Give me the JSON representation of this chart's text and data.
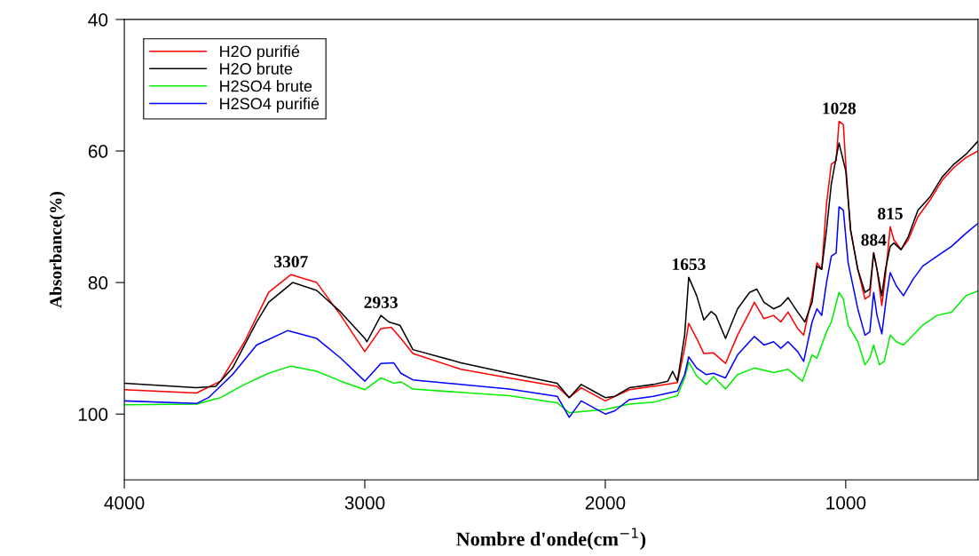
{
  "chart_data": {
    "type": "line",
    "xlabel": "Nombre d'onde(cm$^{−1}$)",
    "ylabel": "Absorbance(%)",
    "xlim": [
      4000,
      450
    ],
    "xticks": [
      4000,
      3000,
      2000,
      1000
    ],
    "ylim": [
      110,
      40
    ],
    "yticks": [
      40,
      60,
      80,
      100
    ],
    "grid": false,
    "legend": "top left",
    "marker": "none",
    "line_style": "solid",
    "series": [
      {
        "name": "H2O purifié",
        "color": "#ff0000",
        "x": [
          4000,
          3700,
          3600,
          3500,
          3400,
          3307,
          3200,
          3100,
          3000,
          2933,
          2890,
          2850,
          2800,
          2600,
          2400,
          2200,
          2150,
          2100,
          2000,
          1900,
          1800,
          1700,
          1670,
          1653,
          1620,
          1590,
          1550,
          1500,
          1450,
          1400,
          1380,
          1340,
          1300,
          1270,
          1240,
          1200,
          1175,
          1140,
          1120,
          1100,
          1080,
          1060,
          1040,
          1028,
          1010,
          1000,
          980,
          950,
          920,
          900,
          884,
          870,
          850,
          835,
          815,
          800,
          770,
          740,
          700,
          650,
          600,
          550,
          500,
          450
        ],
        "values": [
          96.3,
          96.8,
          95,
          89,
          81.5,
          78.8,
          80,
          85,
          90.5,
          87,
          86.8,
          88.5,
          90.8,
          93.2,
          94.5,
          95.8,
          97.5,
          96,
          98,
          96.3,
          95.8,
          95.2,
          90,
          86.2,
          88.5,
          90.8,
          90.7,
          92.3,
          88,
          84.5,
          83,
          85.5,
          85,
          86,
          84.5,
          87,
          88,
          82,
          77,
          78,
          68,
          62,
          61.5,
          55.5,
          56,
          62,
          72,
          78,
          82.5,
          82,
          75.5,
          78,
          83.5,
          79,
          71.5,
          73.5,
          75,
          73.5,
          70,
          67.5,
          64.5,
          62.5,
          61,
          60
        ]
      },
      {
        "name": "H2O brute",
        "color": "#000000",
        "x": [
          4000,
          3700,
          3620,
          3550,
          3450,
          3400,
          3300,
          3200,
          3100,
          3000,
          2991,
          2933,
          2900,
          2854,
          2800,
          2600,
          2400,
          2200,
          2150,
          2100,
          2050,
          2000,
          1960,
          1900,
          1800,
          1740,
          1720,
          1700,
          1670,
          1653,
          1620,
          1590,
          1560,
          1540,
          1500,
          1450,
          1400,
          1370,
          1340,
          1300,
          1270,
          1240,
          1200,
          1170,
          1140,
          1120,
          1100,
          1080,
          1060,
          1040,
          1028,
          1000,
          980,
          950,
          920,
          900,
          884,
          870,
          850,
          835,
          815,
          800,
          770,
          740,
          700,
          650,
          600,
          550,
          500,
          450
        ],
        "values": [
          95.3,
          96,
          95.8,
          93,
          86,
          83,
          80,
          81.2,
          84.5,
          88.5,
          89,
          85,
          86,
          86.5,
          90.2,
          92.2,
          93.8,
          95.3,
          97.5,
          95.5,
          96.5,
          97.5,
          97.3,
          96,
          95.5,
          95,
          93.5,
          95,
          88,
          79.2,
          82,
          85.7,
          84.4,
          85,
          88.5,
          84,
          81.5,
          81,
          83,
          84,
          83.5,
          82.3,
          84.5,
          86,
          83,
          77.5,
          78,
          72,
          65,
          61,
          58.8,
          63,
          72,
          78,
          81.5,
          81,
          75.5,
          78,
          82,
          78,
          74.5,
          74,
          75,
          73,
          69,
          67,
          64,
          62,
          60.5,
          58.5
        ]
      },
      {
        "name": "H2SO4 brute",
        "color": "#00ee00",
        "x": [
          4000,
          3700,
          3600,
          3500,
          3400,
          3307,
          3200,
          3100,
          3000,
          2933,
          2880,
          2850,
          2800,
          2400,
          2200,
          2150,
          2000,
          1900,
          1800,
          1700,
          1670,
          1653,
          1620,
          1580,
          1550,
          1500,
          1450,
          1380,
          1300,
          1240,
          1180,
          1140,
          1120,
          1080,
          1060,
          1028,
          1010,
          990,
          950,
          920,
          900,
          884,
          860,
          840,
          815,
          790,
          760,
          720,
          680,
          620,
          560,
          500,
          450
        ],
        "values": [
          98.6,
          98.5,
          97.5,
          95.5,
          93.8,
          92.7,
          93.5,
          95,
          96.3,
          94.5,
          95.3,
          95.1,
          96.2,
          97.2,
          98.3,
          99.8,
          99.3,
          98.5,
          98.2,
          97.2,
          94.5,
          92.1,
          94.2,
          95.5,
          94.3,
          96.2,
          94,
          93,
          93.7,
          93.2,
          95,
          91,
          91.5,
          87.5,
          86,
          81.5,
          82.5,
          86.5,
          89,
          92.5,
          91.5,
          89.5,
          92.5,
          92,
          88,
          89,
          89.5,
          88,
          86.5,
          85,
          84.5,
          82,
          81.3
        ]
      },
      {
        "name": "H2SO4 purifié",
        "color": "#0000ff",
        "x": [
          4000,
          3700,
          3650,
          3550,
          3450,
          3320,
          3200,
          3100,
          3000,
          2933,
          2880,
          2850,
          2800,
          2400,
          2200,
          2150,
          2100,
          2000,
          1960,
          1900,
          1800,
          1700,
          1670,
          1653,
          1620,
          1580,
          1550,
          1500,
          1450,
          1380,
          1340,
          1300,
          1270,
          1240,
          1200,
          1175,
          1140,
          1120,
          1100,
          1080,
          1060,
          1040,
          1028,
          1010,
          990,
          950,
          920,
          900,
          884,
          870,
          850,
          830,
          815,
          790,
          760,
          720,
          680,
          620,
          560,
          500,
          450
        ],
        "values": [
          98.0,
          98.4,
          97.5,
          94,
          89.5,
          87.3,
          88.5,
          91.5,
          95,
          92.3,
          92.2,
          93.8,
          94.8,
          96.2,
          97.3,
          100.5,
          98,
          100,
          99.5,
          97.8,
          97.3,
          96.5,
          94,
          91.3,
          93,
          94,
          93.8,
          94.5,
          91,
          88.2,
          89.5,
          89,
          90,
          89,
          90.5,
          92,
          86,
          84,
          85,
          80,
          76,
          75.5,
          68.5,
          69,
          77,
          84,
          88,
          87.5,
          81.5,
          85,
          87.8,
          82,
          78.5,
          80.5,
          82,
          79.5,
          77.5,
          76,
          74.5,
          72.5,
          71
        ]
      }
    ],
    "annotations": [
      {
        "text": "3307",
        "x": 3307,
        "y": 78.8
      },
      {
        "text": "2933",
        "x": 2933,
        "y": 85
      },
      {
        "text": "1653",
        "x": 1653,
        "y": 79.2
      },
      {
        "text": "1028",
        "x": 1028,
        "y": 55.5
      },
      {
        "text": "884",
        "x": 884,
        "y": 75.5
      },
      {
        "text": "815",
        "x": 815,
        "y": 71.5
      }
    ]
  }
}
